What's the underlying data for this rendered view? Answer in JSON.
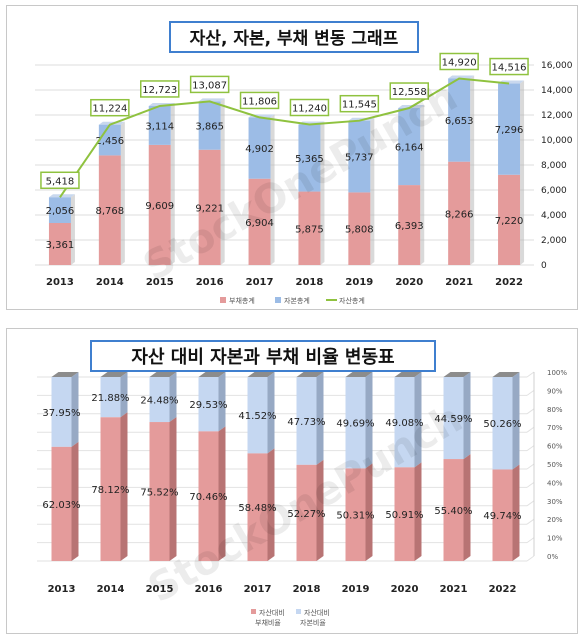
{
  "chart_data": [
    {
      "type": "bar",
      "title": "자산, 자본, 부채 변동 그래프",
      "categories": [
        "2013",
        "2014",
        "2015",
        "2016",
        "2017",
        "2018",
        "2019",
        "2020",
        "2021",
        "2022"
      ],
      "stacked": true,
      "series": [
        {
          "name": "부채총계",
          "kind": "bar",
          "color": "#e49b9b",
          "values": [
            3361,
            8768,
            9609,
            9221,
            6904,
            5875,
            5808,
            6393,
            8266,
            7220
          ]
        },
        {
          "name": "자본총계",
          "kind": "bar",
          "color": "#9cbce6",
          "values": [
            2056,
            2456,
            3114,
            3865,
            4902,
            5365,
            5737,
            6164,
            6653,
            7296
          ]
        },
        {
          "name": "자산총계",
          "kind": "line",
          "color": "#8fc23f",
          "values": [
            5418,
            11224,
            12723,
            13087,
            11806,
            11240,
            11545,
            12558,
            14920,
            14516
          ]
        }
      ],
      "y_ticks": [
        "0",
        "2,000",
        "4,000",
        "6,000",
        "8,000",
        "10,000",
        "12,000",
        "14,000",
        "16,000"
      ],
      "ylim": [
        0,
        16000
      ],
      "y_axis_side": "right",
      "legend_position": "bottom",
      "grid": true
    },
    {
      "type": "bar",
      "title": "자산 대비 자본과 부채 비율 변동표",
      "categories": [
        "2013",
        "2014",
        "2015",
        "2016",
        "2017",
        "2018",
        "2019",
        "2020",
        "2021",
        "2022"
      ],
      "stacked": true,
      "percent": true,
      "series": [
        {
          "legend": [
            "자산대비",
            "부채비율"
          ],
          "color": "#e49b9b",
          "values": [
            62.03,
            78.12,
            75.52,
            70.46,
            58.48,
            52.27,
            50.31,
            50.91,
            55.4,
            49.74
          ],
          "labels": [
            "62.03%",
            "78.12%",
            "75.52%",
            "70.46%",
            "58.48%",
            "52.27%",
            "50.31%",
            "50.91%",
            "55.40%",
            "49.74%"
          ]
        },
        {
          "legend": [
            "자산대비",
            "자본비율"
          ],
          "color": "#c5d7f1",
          "values": [
            37.95,
            21.88,
            24.48,
            29.53,
            41.52,
            47.73,
            49.69,
            49.08,
            44.59,
            50.26
          ],
          "labels": [
            "37.95%",
            "21.88%",
            "24.48%",
            "29.53%",
            "41.52%",
            "47.73%",
            "49.69%",
            "49.08%",
            "44.59%",
            "50.26%"
          ]
        }
      ],
      "y_ticks": [
        "0%",
        "10%",
        "20%",
        "30%",
        "40%",
        "50%",
        "60%",
        "70%",
        "80%",
        "90%",
        "100%"
      ],
      "ylim": [
        0,
        100
      ],
      "y_axis_side": "right",
      "legend_position": "bottom",
      "grid": true
    }
  ],
  "watermark": "StockOnePunch"
}
